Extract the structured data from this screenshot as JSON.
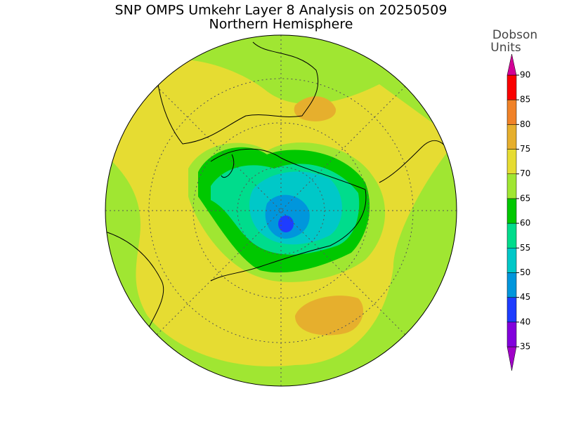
{
  "title": "SNP OMPS Umkehr Layer 8 Analysis on 20250509",
  "subtitle": "Northern Hemisphere",
  "colorbar": {
    "label_lines": [
      "Dobson",
      "Units"
    ],
    "ticks": [
      35,
      40,
      45,
      50,
      55,
      60,
      65,
      70,
      75,
      80,
      85,
      90
    ],
    "colors": [
      "#a000c8",
      "#8200dc",
      "#1e3cff",
      "#0096dc",
      "#00c8c8",
      "#00dc8c",
      "#00c800",
      "#a0e632",
      "#e6dc32",
      "#e6af2d",
      "#f08228",
      "#fa0000",
      "#d20096"
    ]
  }
}
